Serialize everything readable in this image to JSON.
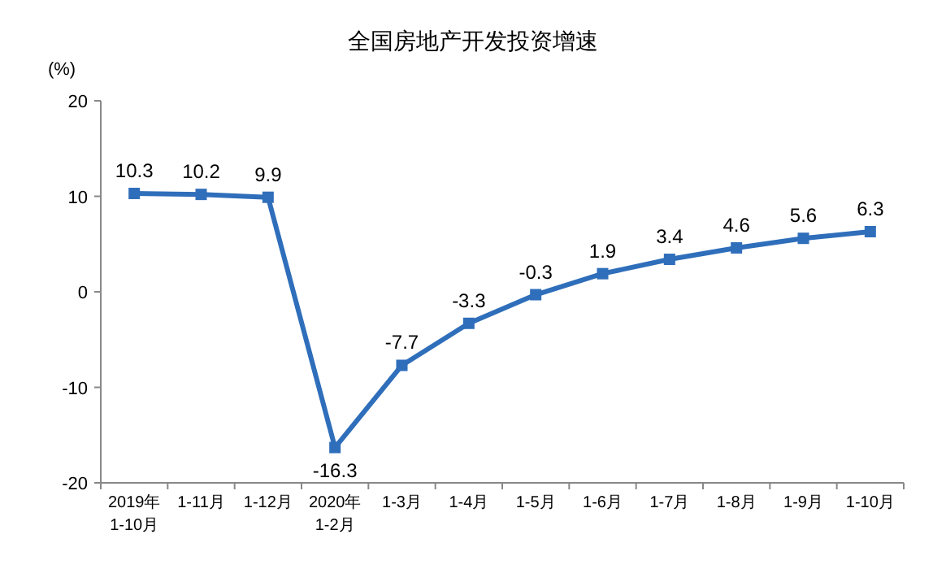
{
  "chart_data": {
    "type": "line",
    "title": "全国房地产开发投资增速",
    "ylabel": "(%)",
    "categories": [
      "2019年\n1-10月",
      "1-11月",
      "1-12月",
      "2020年\n1-2月",
      "1-3月",
      "1-4月",
      "1-5月",
      "1-6月",
      "1-7月",
      "1-8月",
      "1-9月",
      "1-10月"
    ],
    "series": [
      {
        "color": "#2f6eba",
        "values": [
          10.3,
          10.2,
          9.9,
          -16.3,
          -7.7,
          -3.3,
          -0.3,
          1.9,
          3.4,
          4.6,
          5.6,
          6.3
        ]
      }
    ],
    "ylim": [
      -20,
      20
    ],
    "yticks": [
      -20,
      -10,
      0,
      10,
      20
    ],
    "grid": false,
    "marker": "square",
    "line_style": "solid",
    "data_labels": true
  }
}
